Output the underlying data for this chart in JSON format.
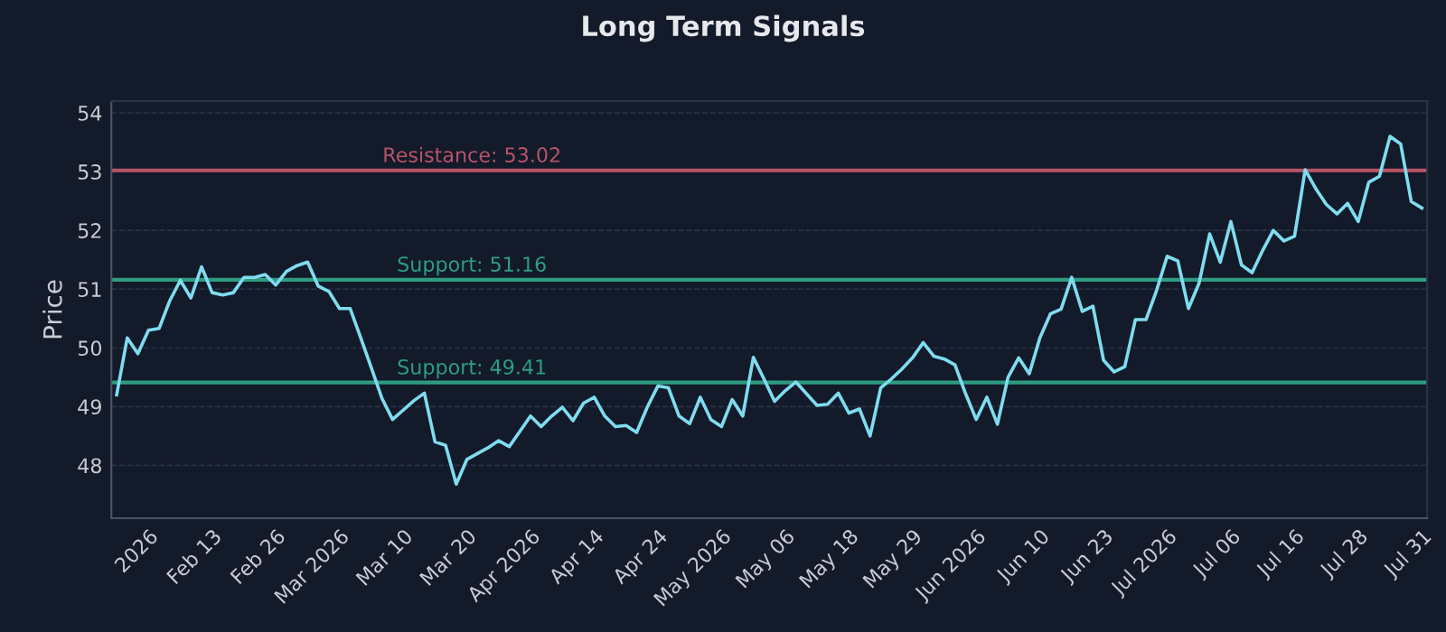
{
  "chart_data": {
    "type": "line",
    "title": "Long Term Signals",
    "ylabel": "Price",
    "categories": [
      null,
      null,
      null,
      "2026",
      null,
      null,
      null,
      null,
      null,
      "Feb 13",
      null,
      null,
      null,
      null,
      null,
      "Feb 26",
      null,
      null,
      null,
      null,
      null,
      "Mar 2026",
      null,
      null,
      null,
      null,
      null,
      "Mar 10",
      null,
      null,
      null,
      null,
      null,
      "Mar 20",
      null,
      null,
      null,
      null,
      null,
      "Apr 2026",
      null,
      null,
      null,
      null,
      null,
      "Apr 14",
      null,
      null,
      null,
      null,
      null,
      "Apr 24",
      null,
      null,
      null,
      null,
      null,
      "May 2026",
      null,
      null,
      null,
      null,
      null,
      "May 06",
      null,
      null,
      null,
      null,
      null,
      "May 18",
      null,
      null,
      null,
      null,
      null,
      "May 29",
      null,
      null,
      null,
      null,
      null,
      "Jun 2026",
      null,
      null,
      null,
      null,
      null,
      "Jun 10",
      null,
      null,
      null,
      null,
      null,
      "Jun 23",
      null,
      null,
      null,
      null,
      null,
      "Jul 2026",
      null,
      null,
      null,
      null,
      null,
      "Jul 06",
      null,
      null,
      null,
      null,
      null,
      "Jul 16",
      null,
      null,
      null,
      null,
      null,
      "Jul 28",
      null,
      null,
      null,
      null,
      null,
      "Jul 31"
    ],
    "series": [
      {
        "color": "#7fdcef",
        "values": [
          49.2,
          50.17,
          49.9,
          50.3,
          50.33,
          50.8,
          51.15,
          50.85,
          51.38,
          50.94,
          50.9,
          50.94,
          51.2,
          51.2,
          51.25,
          51.07,
          51.3,
          51.4,
          51.46,
          51.05,
          50.96,
          50.67,
          50.67,
          50.17,
          49.66,
          49.14,
          48.78,
          48.94,
          49.1,
          49.23,
          48.4,
          48.34,
          47.68,
          48.1,
          48.2,
          48.3,
          48.42,
          48.32,
          48.58,
          48.84,
          48.66,
          48.84,
          48.99,
          48.76,
          49.06,
          49.16,
          48.84,
          48.66,
          48.68,
          48.56,
          48.99,
          49.35,
          49.32,
          48.84,
          48.71,
          49.16,
          48.78,
          48.66,
          49.12,
          48.84,
          49.84,
          49.47,
          49.09,
          49.27,
          49.42,
          49.22,
          49.02,
          49.04,
          49.23,
          48.89,
          48.96,
          48.5,
          49.32,
          49.47,
          49.64,
          49.83,
          50.09,
          49.86,
          49.81,
          49.71,
          49.22,
          48.78,
          49.16,
          48.7,
          49.5,
          49.83,
          49.56,
          50.17,
          50.58,
          50.66,
          51.2,
          50.62,
          50.71,
          49.79,
          49.59,
          49.68,
          50.48,
          50.48,
          50.98,
          51.56,
          51.48,
          50.67,
          51.1,
          51.94,
          51.46,
          52.15,
          51.41,
          51.28,
          51.66,
          52.0,
          51.82,
          51.9,
          53.03,
          52.71,
          52.44,
          52.28,
          52.46,
          52.15,
          52.82,
          52.92,
          53.6,
          53.47,
          52.49,
          52.38
        ]
      }
    ],
    "ylim": [
      47.1,
      54.2
    ],
    "yticks": [
      48,
      49,
      50,
      51,
      52,
      53,
      54
    ],
    "grid": "y",
    "marker": "none",
    "line_style": "solid",
    "ref_lines": [
      {
        "axis": "y",
        "value": 53.02,
        "label": "Resistance: 53.02",
        "color": "#b85468"
      },
      {
        "axis": "y",
        "value": 51.16,
        "label": "Support: 51.16",
        "color": "#2f9c80"
      },
      {
        "axis": "y",
        "value": 49.41,
        "label": "Support: 49.41",
        "color": "#2f9c80"
      }
    ]
  }
}
